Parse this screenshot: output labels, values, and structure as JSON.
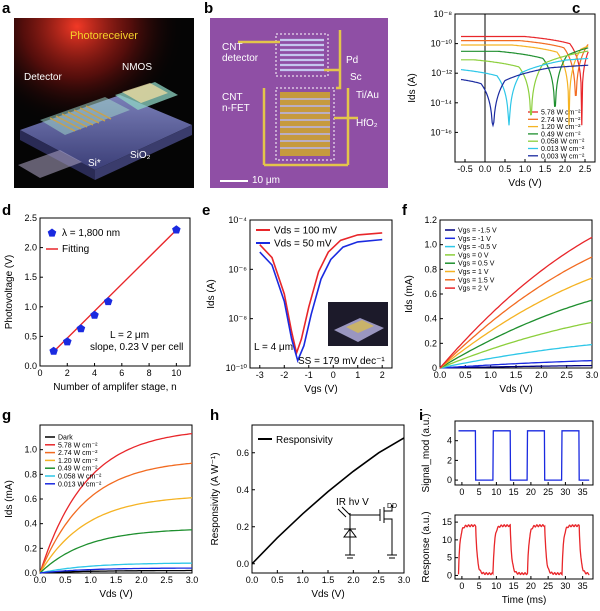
{
  "panels": {
    "a": {
      "letter": "a",
      "labels": {
        "photoreceiver": "Photoreceiver",
        "detector": "Detector",
        "nmos": "NMOS",
        "si": "Si*",
        "sio2": "SiO₂"
      }
    },
    "b": {
      "letter": "b",
      "labels": {
        "cnt_detector_1": "CNT",
        "cnt_detector_2": "detector",
        "cnt_nfet_1": "CNT",
        "cnt_nfet_2": "n-FET",
        "pd": "Pd",
        "sc": "Sc",
        "tiau": "Ti/Au",
        "hfo2": "HfO₂",
        "scalebar": "10 μm"
      }
    },
    "c": {
      "letter": "c"
    },
    "d": {
      "letter": "d",
      "annotation1": "L = 2 μm",
      "annotation2": "slope, 0.23 V per cell"
    },
    "e": {
      "letter": "e",
      "annotation_L": "L = 4 μm",
      "annotation_ss": "SS = 179 mV dec⁻¹"
    },
    "f": {
      "letter": "f"
    },
    "g": {
      "letter": "g"
    },
    "h": {
      "letter": "h",
      "circuit_label": "IR  hν  V",
      "circuit_sub": "DD"
    },
    "i": {
      "letter": "i"
    }
  },
  "chart_data": [
    {
      "id": "c",
      "type": "line",
      "title": "",
      "xlabel": "Vds (V)",
      "ylabel": "Ids (A)",
      "yscale": "log",
      "xlim": [
        -0.75,
        2.75
      ],
      "ylim": [
        1e-18,
        1e-08
      ],
      "xticks": [
        "-0.5",
        "0.0",
        "0.5",
        "1.0",
        "1.5",
        "2.0",
        "2.5"
      ],
      "yticks": [
        "10⁻⁸",
        "10⁻¹⁰",
        "10⁻¹²",
        "10⁻¹⁴",
        "10⁻¹⁶"
      ],
      "legend_position": "bottom-right",
      "series": [
        {
          "name": "5.78 W cm⁻²",
          "color": "#e8262a",
          "zero_at": 2.42,
          "plateau": 3e-10
        },
        {
          "name": "2.74 W cm⁻²",
          "color": "#f26b21",
          "zero_at": 2.27,
          "plateau": 1.6e-10
        },
        {
          "name": "1.20 W cm⁻²",
          "color": "#f5b324",
          "zero_at": 2.1,
          "plateau": 8e-11
        },
        {
          "name": "0.49 W cm⁻²",
          "color": "#1e8f2e",
          "zero_at": 1.75,
          "plateau": 3e-11
        },
        {
          "name": "0.058 W cm⁻²",
          "color": "#8ccf3c",
          "zero_at": 1.15,
          "plateau": 8e-12
        },
        {
          "name": "0.013 W cm⁻²",
          "color": "#2ec7e8",
          "zero_at": 0.6,
          "plateau": 2e-12
        },
        {
          "name": "0.003 W cm⁻²",
          "color": "#1a2aa0",
          "zero_at": 0.2,
          "plateau": 6e-13
        }
      ]
    },
    {
      "id": "d",
      "type": "scatter",
      "title": "",
      "xlabel": "Number of amplifer stage, n",
      "ylabel": "Photovoltage (V)",
      "xlim": [
        0,
        11
      ],
      "ylim": [
        0,
        2.5
      ],
      "xticks": [
        "0",
        "2",
        "4",
        "6",
        "8",
        "10"
      ],
      "yticks": [
        "0.0",
        "0.5",
        "1.0",
        "1.5",
        "2.0",
        "2.5"
      ],
      "legend_position": "top-left",
      "series": [
        {
          "name": "λ = 1,800 nm",
          "color": "#1a2ae0",
          "x": [
            1,
            2,
            3,
            4,
            5,
            10
          ],
          "y": [
            0.25,
            0.41,
            0.63,
            0.86,
            1.09,
            2.3
          ]
        },
        {
          "name": "Fitting",
          "color": "#e8262a",
          "x": [
            0.9,
            10.1
          ],
          "y": [
            0.22,
            2.32
          ]
        }
      ]
    },
    {
      "id": "e",
      "type": "line",
      "title": "",
      "xlabel": "Vgs (V)",
      "ylabel": "Ids (A)",
      "yscale": "log",
      "xlim": [
        -3.4,
        2.4
      ],
      "ylim": [
        1e-10,
        0.0001
      ],
      "xticks": [
        "-3",
        "-2",
        "-1",
        "0",
        "1",
        "2"
      ],
      "yticks": [
        "10⁻⁴",
        "10⁻⁶",
        "10⁻⁸",
        "10⁻¹⁰"
      ],
      "legend_position": "top-left",
      "series": [
        {
          "name": "Vds = 100 mV",
          "color": "#e8262a",
          "x": [
            -3,
            -2.5,
            -2,
            -1.7,
            -1.5,
            -1.3,
            -1.0,
            -0.6,
            -0.2,
            0.3,
            1,
            2
          ],
          "y": [
            1e-05,
            3e-06,
            1e-07,
            3e-09,
            4e-10,
            1.5e-09,
            3e-08,
            8e-07,
            5e-06,
            1.5e-05,
            2.5e-05,
            3e-05
          ]
        },
        {
          "name": "Vds = 50 mV",
          "color": "#1a2ae0",
          "x": [
            -3,
            -2.5,
            -2,
            -1.7,
            -1.45,
            -1.2,
            -0.9,
            -0.5,
            -0.1,
            0.4,
            1,
            2
          ],
          "y": [
            5e-06,
            1.5e-06,
            5e-08,
            1.5e-09,
            2e-10,
            8e-10,
            1.5e-08,
            4e-07,
            2.5e-06,
            8e-06,
            1.3e-05,
            1.6e-05
          ]
        }
      ]
    },
    {
      "id": "f",
      "type": "line",
      "title": "",
      "xlabel": "Vds (V)",
      "ylabel": "Ids (mA)",
      "xlim": [
        0,
        3
      ],
      "ylim": [
        0,
        1.2
      ],
      "xticks": [
        "0.0",
        "0.5",
        "1.0",
        "1.5",
        "2.0",
        "2.5",
        "3.0"
      ],
      "yticks": [
        "0",
        "0.2",
        "0.4",
        "0.6",
        "0.8",
        "1.0",
        "1.2"
      ],
      "legend_position": "top-left",
      "series": [
        {
          "name": "Vgs = -1.5 V",
          "color": "#000080",
          "end": 0.02
        },
        {
          "name": "Vgs = -1 V",
          "color": "#1a2ae0",
          "end": 0.06
        },
        {
          "name": "Vgs = -0.5 V",
          "color": "#2ec7e8",
          "end": 0.19
        },
        {
          "name": "Vgs = 0 V",
          "color": "#8ccf3c",
          "end": 0.37
        },
        {
          "name": "Vgs = 0.5 V",
          "color": "#1e8f2e",
          "end": 0.55
        },
        {
          "name": "Vgs = 1 V",
          "color": "#f5b324",
          "end": 0.73
        },
        {
          "name": "Vgs = 1.5 V",
          "color": "#f26b21",
          "end": 0.9
        },
        {
          "name": "Vgs = 2 V",
          "color": "#e8262a",
          "end": 1.06
        }
      ]
    },
    {
      "id": "g",
      "type": "line",
      "title": "",
      "xlabel": "Vds (V)",
      "ylabel": "Ids (mA)",
      "xlim": [
        0,
        3
      ],
      "ylim": [
        0,
        1.2
      ],
      "xticks": [
        "0.0",
        "0.5",
        "1.0",
        "1.5",
        "2.0",
        "2.5",
        "3.0"
      ],
      "yticks": [
        "0.0",
        "0.2",
        "0.4",
        "0.6",
        "0.8",
        "1.0"
      ],
      "legend_position": "top-left",
      "series": [
        {
          "name": "Dark",
          "color": "#000000",
          "end": 0.02
        },
        {
          "name": "5.78 W cm⁻²",
          "color": "#e8262a",
          "end": 1.13
        },
        {
          "name": "2.74 W cm⁻²",
          "color": "#f26b21",
          "end": 0.89
        },
        {
          "name": "1.20 W cm⁻²",
          "color": "#f5b324",
          "end": 0.61
        },
        {
          "name": "0.49 W cm⁻²",
          "color": "#1e8f2e",
          "end": 0.35
        },
        {
          "name": "0.058 W cm⁻²",
          "color": "#2ec7e8",
          "end": 0.08
        },
        {
          "name": "0.013 W cm⁻²",
          "color": "#1a2ae0",
          "end": 0.04
        }
      ]
    },
    {
      "id": "h",
      "type": "line",
      "title": "",
      "xlabel": "Vds (V)",
      "ylabel": "Responsivity (A W⁻¹)",
      "xlim": [
        0,
        3
      ],
      "ylim": [
        -0.05,
        0.75
      ],
      "xticks": [
        "0.0",
        "0.5",
        "1.0",
        "1.5",
        "2.0",
        "2.5",
        "3.0"
      ],
      "yticks": [
        "0.0",
        "0.2",
        "0.4",
        "0.6"
      ],
      "legend_position": "top-left",
      "series": [
        {
          "name": "Responsivity",
          "color": "#000000",
          "x": [
            0,
            0.5,
            1.0,
            1.5,
            2.0,
            2.5,
            3.0
          ],
          "y": [
            0.0,
            0.14,
            0.27,
            0.39,
            0.5,
            0.6,
            0.68
          ]
        }
      ]
    },
    {
      "id": "i1",
      "type": "line",
      "title": "",
      "xlabel": "",
      "ylabel": "Signal_mod (a.u.)",
      "xlim": [
        -2,
        38
      ],
      "ylim": [
        -0.5,
        6
      ],
      "xticks": [
        "0",
        "5",
        "10",
        "15",
        "20",
        "25",
        "30",
        "35"
      ],
      "yticks": [
        "0",
        "2",
        "4"
      ],
      "series": [
        {
          "name": "",
          "color": "#1a2ae0",
          "period": 10,
          "high": 5,
          "low": 0
        }
      ]
    },
    {
      "id": "i2",
      "type": "line",
      "title": "",
      "xlabel": "Time (ms)",
      "ylabel": "Response (a.u.)",
      "xlim": [
        -2,
        38
      ],
      "ylim": [
        -1,
        17
      ],
      "xticks": [
        "0",
        "5",
        "10",
        "15",
        "20",
        "25",
        "30",
        "35"
      ],
      "yticks": [
        "0",
        "5",
        "10",
        "15"
      ],
      "series": [
        {
          "name": "",
          "color": "#e8262a",
          "period": 10,
          "high": 14,
          "low": 0.5
        }
      ]
    }
  ]
}
